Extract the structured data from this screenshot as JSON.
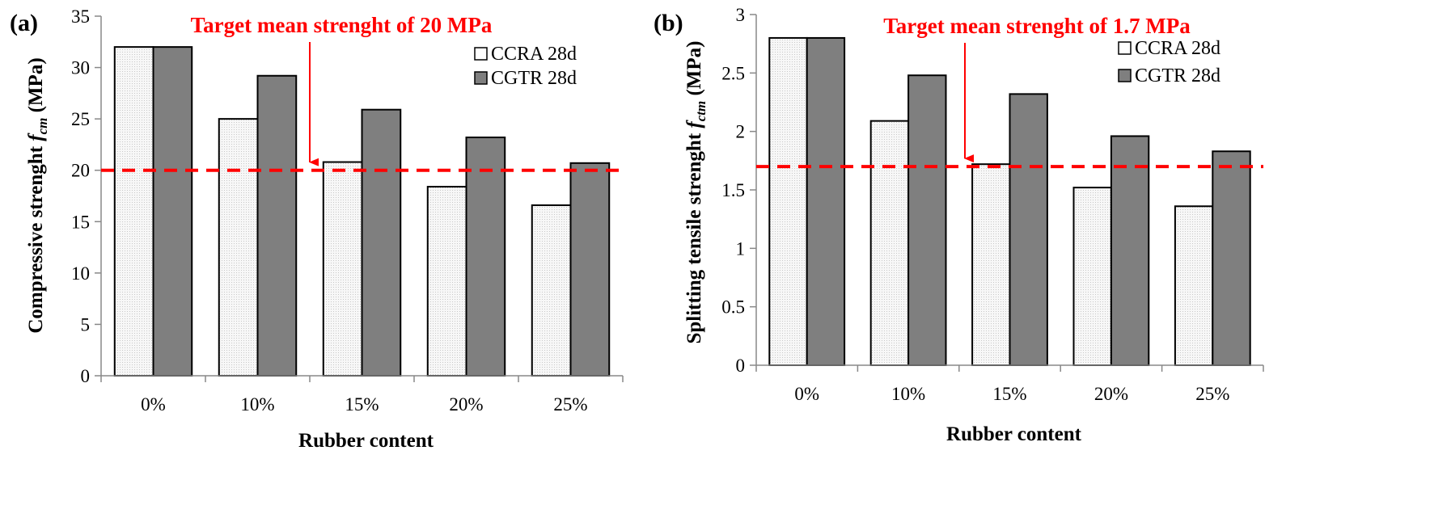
{
  "chart_data": [
    {
      "type": "bar",
      "panel_label": "(a)",
      "categories": [
        "0%",
        "10%",
        "15%",
        "20%",
        "25%"
      ],
      "series": [
        {
          "name": "CCRA 28d",
          "values": [
            32,
            25,
            20.8,
            18.4,
            16.6
          ]
        },
        {
          "name": "CGTR 28d",
          "values": [
            32,
            29.2,
            25.9,
            23.2,
            20.7
          ]
        }
      ],
      "xlabel": "Rubber content",
      "ylabel_prefix": "Compressive strenght ",
      "ylabel_var": "f",
      "ylabel_sub": "cm",
      "ylabel_suffix": "  (MPa)",
      "ylim": [
        0,
        35
      ],
      "yticks": [
        0,
        5,
        10,
        15,
        20,
        25,
        30,
        35
      ],
      "ytick_labels": [
        "0",
        "5",
        "10",
        "15",
        "20",
        "25",
        "30",
        "35"
      ],
      "target_value": 20,
      "target_label": "Target mean strenght of 20 MPa",
      "legend_position": "top-right",
      "colors": {
        "CCRA 28d": "#f4f4f4",
        "CGTR 28d": "#7f7f7f",
        "target": "#ff0000"
      }
    },
    {
      "type": "bar",
      "panel_label": "(b)",
      "categories": [
        "0%",
        "10%",
        "15%",
        "20%",
        "25%"
      ],
      "series": [
        {
          "name": "CCRA 28d",
          "values": [
            2.8,
            2.09,
            1.72,
            1.52,
            1.36
          ]
        },
        {
          "name": "CGTR 28d",
          "values": [
            2.8,
            2.48,
            2.32,
            1.96,
            1.83
          ]
        }
      ],
      "xlabel": "Rubber content",
      "ylabel_prefix": "Splitting tensile strenght ",
      "ylabel_var": "f",
      "ylabel_sub": "ctm",
      "ylabel_suffix": "  (MPa)",
      "ylim": [
        0,
        3
      ],
      "yticks": [
        0,
        0.5,
        1,
        1.5,
        2,
        2.5,
        3
      ],
      "ytick_labels": [
        "0",
        "0.5",
        "1",
        "1.5",
        "2",
        "2.5",
        "3"
      ],
      "target_value": 1.7,
      "target_label": "Target mean strenght of  1.7 MPa",
      "legend_position": "top-right",
      "colors": {
        "CCRA 28d": "#f4f4f4",
        "CGTR 28d": "#7f7f7f",
        "target": "#ff0000"
      }
    }
  ]
}
